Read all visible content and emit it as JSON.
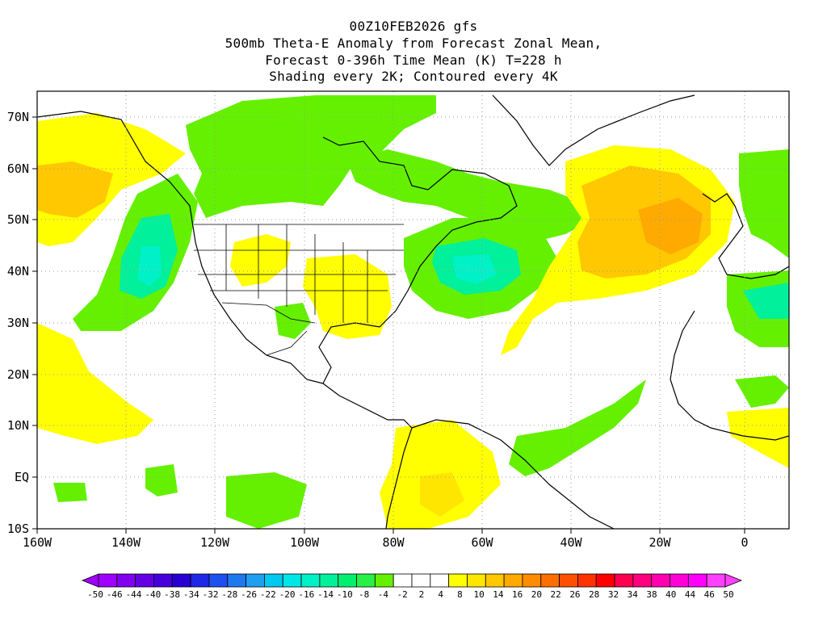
{
  "header": {
    "line1": "00Z10FEB2026 gfs",
    "line2": "500mb Theta-E Anomaly from Forecast Zonal Mean,",
    "line3": "Forecast 0-396h Time Mean (K) T=228 h",
    "line4": "Shading every 2K; Contoured every 4K"
  },
  "axes": {
    "lat_labels": [
      "70N",
      "60N",
      "50N",
      "40N",
      "30N",
      "20N",
      "10N",
      "EQ",
      "10S"
    ],
    "lon_labels": [
      "160W",
      "140W",
      "120W",
      "100W",
      "80W",
      "60W",
      "40W",
      "20W",
      "0"
    ]
  },
  "colorbar": {
    "labels": [
      "-50",
      "-46",
      "-44",
      "-40",
      "-38",
      "-34",
      "-32",
      "-28",
      "-26",
      "-22",
      "-20",
      "-16",
      "-14",
      "-10",
      "-8",
      "-4",
      "-2",
      "2",
      "4",
      "8",
      "10",
      "14",
      "16",
      "20",
      "22",
      "26",
      "28",
      "32",
      "34",
      "38",
      "40",
      "44",
      "46",
      "50"
    ],
    "colors": [
      "#a000ff",
      "#8200f0",
      "#6400e6",
      "#4600dc",
      "#2800d2",
      "#1e28e6",
      "#1e50f0",
      "#1e78f0",
      "#1ea0f0",
      "#00c8f0",
      "#00e6e6",
      "#00f0c8",
      "#00f09b",
      "#00f06e",
      "#28f046",
      "#64f000",
      "#ffffff",
      "#ffffff",
      "#ffffff",
      "#ffff00",
      "#ffe600",
      "#ffc800",
      "#ffaa00",
      "#ff8c00",
      "#ff6e00",
      "#ff5000",
      "#ff3200",
      "#ff0000",
      "#ff0050",
      "#ff0080",
      "#ff00b0",
      "#ff00d8",
      "#ff00ff",
      "#ff40ff"
    ]
  },
  "fill_colors": {
    "yellow": "#ffff00",
    "light_orange": "#ffe600",
    "orange": "#ffc800",
    "dark_orange": "#ffaa00",
    "green": "#64f000",
    "green2": "#28f046",
    "teal": "#00f09b",
    "cyan": "#00f0c8"
  }
}
